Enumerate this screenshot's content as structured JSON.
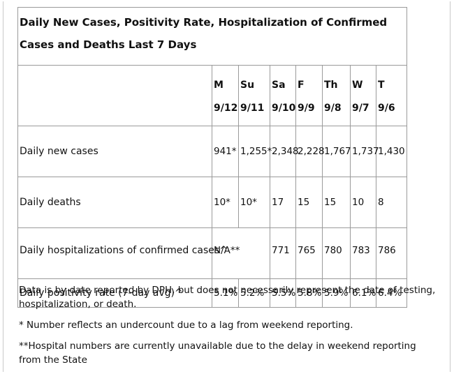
{
  "title": "Daily New Cases, Positivity Rate, Hospitalization of Confirmed Cases and Deaths Last 7 Days",
  "days": [
    {
      "day": "M",
      "date": "9/12"
    },
    {
      "day": "Su",
      "date": "9/11"
    },
    {
      "day": "Sa",
      "date": "9/10"
    },
    {
      "day": "F",
      "date": "9/9"
    },
    {
      "day": "Th",
      "date": "9/8"
    },
    {
      "day": "W",
      "date": "9/7"
    },
    {
      "day": "T",
      "date": "9/6"
    }
  ],
  "rows": [
    {
      "label": "Daily new cases",
      "values": [
        "941*",
        "1,255*",
        "2,348",
        "2,228",
        "1,767",
        "1,737",
        "1,430"
      ]
    },
    {
      "label": "Daily deaths",
      "values": [
        "10*",
        "10*",
        "17",
        "15",
        "15",
        "10",
        "8"
      ]
    },
    {
      "label": "Daily hospitalizations of confirmed cases^",
      "values": [
        "N/A**",
        "",
        "771",
        "765",
        "780",
        "783",
        "786"
      ]
    },
    {
      "label": "Daily positivity rate (7-day avg)^",
      "values": [
        "5.1%",
        "5.2%",
        "5.5%",
        "5.8%",
        "5.9%",
        "6.1%",
        "6.4%"
      ]
    }
  ],
  "notes": [
    "Data is by date reported by DPH, but does not necessarily represent the date of testing, hospitalization, or death.",
    "* Number reflects an undercount due to a lag from weekend reporting.",
    "**Hospital numbers are currently unavailable due to the delay in weekend reporting from the State"
  ]
}
